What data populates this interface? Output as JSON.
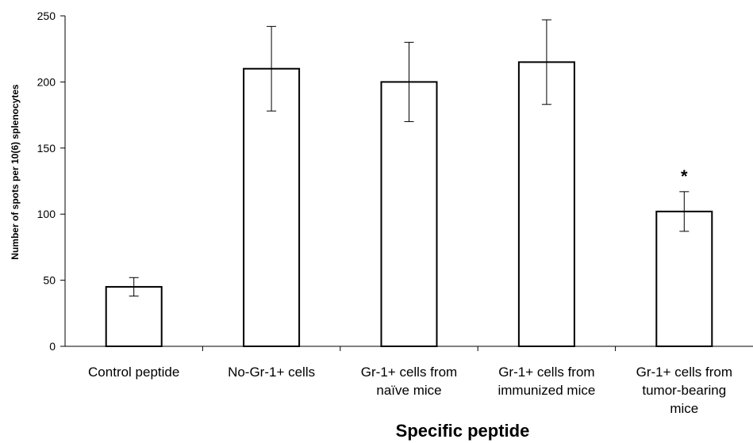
{
  "chart_data": {
    "type": "bar",
    "categories": [
      [
        "Control peptide"
      ],
      [
        "No-Gr-1+ cells"
      ],
      [
        "Gr-1+ cells from",
        "naïve mice"
      ],
      [
        "Gr-1+ cells from",
        "immunized mice"
      ],
      [
        "Gr-1+ cells from",
        "tumor-bearing",
        "mice"
      ]
    ],
    "values": [
      45,
      210,
      200,
      215,
      102
    ],
    "error": [
      7,
      32,
      30,
      32,
      15
    ],
    "annotations": [
      "",
      "",
      "",
      "",
      "*"
    ],
    "ylabel": "Number of spots per 10(6) splenocytes",
    "xlabel": "Specific peptide",
    "ylim": [
      0,
      250
    ],
    "yticks": [
      0,
      50,
      100,
      150,
      200,
      250
    ],
    "grid": false,
    "bar_fill": "#ffffff",
    "bar_stroke": "#000000"
  }
}
